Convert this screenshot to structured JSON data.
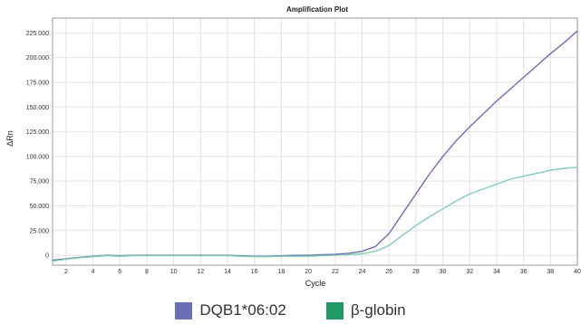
{
  "chart_data": {
    "type": "line",
    "title": "Amplification Plot",
    "xlabel": "Cycle",
    "ylabel": "ΔRn",
    "xlim": [
      1,
      40
    ],
    "ylim": [
      -10000,
      240000
    ],
    "xticks": [
      2,
      4,
      6,
      8,
      10,
      12,
      14,
      16,
      18,
      20,
      22,
      24,
      26,
      28,
      30,
      32,
      34,
      36,
      38,
      40
    ],
    "yticks": [
      0,
      25000,
      50000,
      75000,
      100000,
      125000,
      150000,
      175000,
      200000,
      225000
    ],
    "ytick_labels": [
      "0",
      "25.000",
      "50.000",
      "75.000",
      "100.000",
      "125.000",
      "150.000",
      "175.000",
      "200.000",
      "225.000"
    ],
    "grid": true,
    "legend_position": "bottom",
    "x": [
      1,
      2,
      3,
      4,
      5,
      6,
      7,
      8,
      9,
      10,
      11,
      12,
      13,
      14,
      15,
      16,
      17,
      18,
      19,
      20,
      21,
      22,
      23,
      24,
      25,
      26,
      27,
      28,
      29,
      30,
      31,
      32,
      33,
      34,
      35,
      36,
      37,
      38,
      39,
      40
    ],
    "series": [
      {
        "name": "DQB1*06:02",
        "color": "#6b6fb8",
        "values": [
          -5000,
          -3500,
          -2000,
          -1000,
          0,
          -500,
          0,
          0,
          0,
          0,
          0,
          0,
          0,
          0,
          -500,
          -1000,
          -1000,
          -500,
          0,
          0,
          500,
          1000,
          2000,
          4000,
          9000,
          22000,
          42000,
          62000,
          82000,
          100000,
          116000,
          130000,
          143000,
          156000,
          168000,
          180000,
          192000,
          204000,
          215000,
          227000
        ]
      },
      {
        "name": "β-globin",
        "color": "#7fcfb0",
        "values": [
          -6000,
          -4000,
          -2500,
          -1500,
          -500,
          -1000,
          -500,
          -500,
          -500,
          -500,
          -500,
          -500,
          -500,
          -500,
          -1000,
          -1500,
          -1500,
          -1000,
          -1000,
          -1000,
          -500,
          0,
          500,
          1500,
          4000,
          10000,
          20000,
          30000,
          39000,
          47000,
          55000,
          62000,
          67000,
          72000,
          77000,
          80000,
          83000,
          86000,
          88000,
          89000
        ]
      }
    ]
  },
  "legend": {
    "items": [
      {
        "label": "DQB1*06:02",
        "color": "#6b6fb8"
      },
      {
        "label": "β-globin",
        "color": "#1f9a64"
      }
    ]
  }
}
